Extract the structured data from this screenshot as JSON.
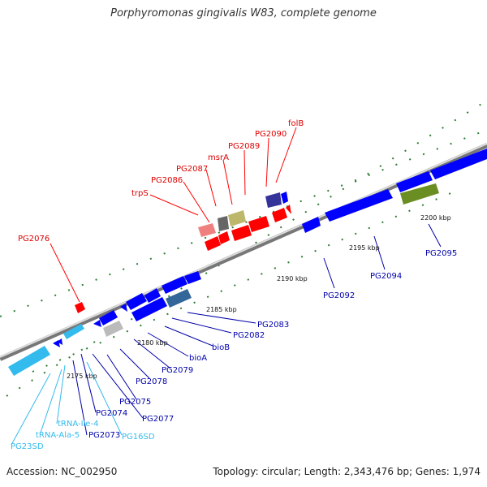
{
  "title": "Porphyromonas gingivalis W83, complete genome",
  "accession_text": "Accession: NC_002950",
  "summary_text": "Topology: circular; Length: 2,343,476 bp; Genes: 1,974",
  "colors": {
    "forward_gene": "#ff0000",
    "reverse_gene": "#0000ff",
    "rna_gene": "#33bbee",
    "tick_mark": "#2e7d32",
    "backbone": "#999999"
  },
  "scale_ticks": [
    "2175 kbp",
    "2180 kbp",
    "2185 kbp",
    "2190 kbp",
    "2195 kbp",
    "2200 kbp"
  ],
  "forward_labels": [
    "PG2076",
    "trpS",
    "PG2086",
    "PG2087",
    "msrA",
    "PG2089",
    "PG2090",
    "folB"
  ],
  "reverse_labels": [
    "PG2092",
    "PG2094",
    "PG2095",
    "PG2083",
    "PG2082",
    "bioB",
    "bioA",
    "PG2079",
    "PG2078",
    "PG2075",
    "PG2077",
    "PG2074",
    "PG2073"
  ],
  "rna_labels": [
    "tRNA-Ile-4",
    "tRNA-Ala-5",
    "PG23SD",
    "PG16SD"
  ]
}
